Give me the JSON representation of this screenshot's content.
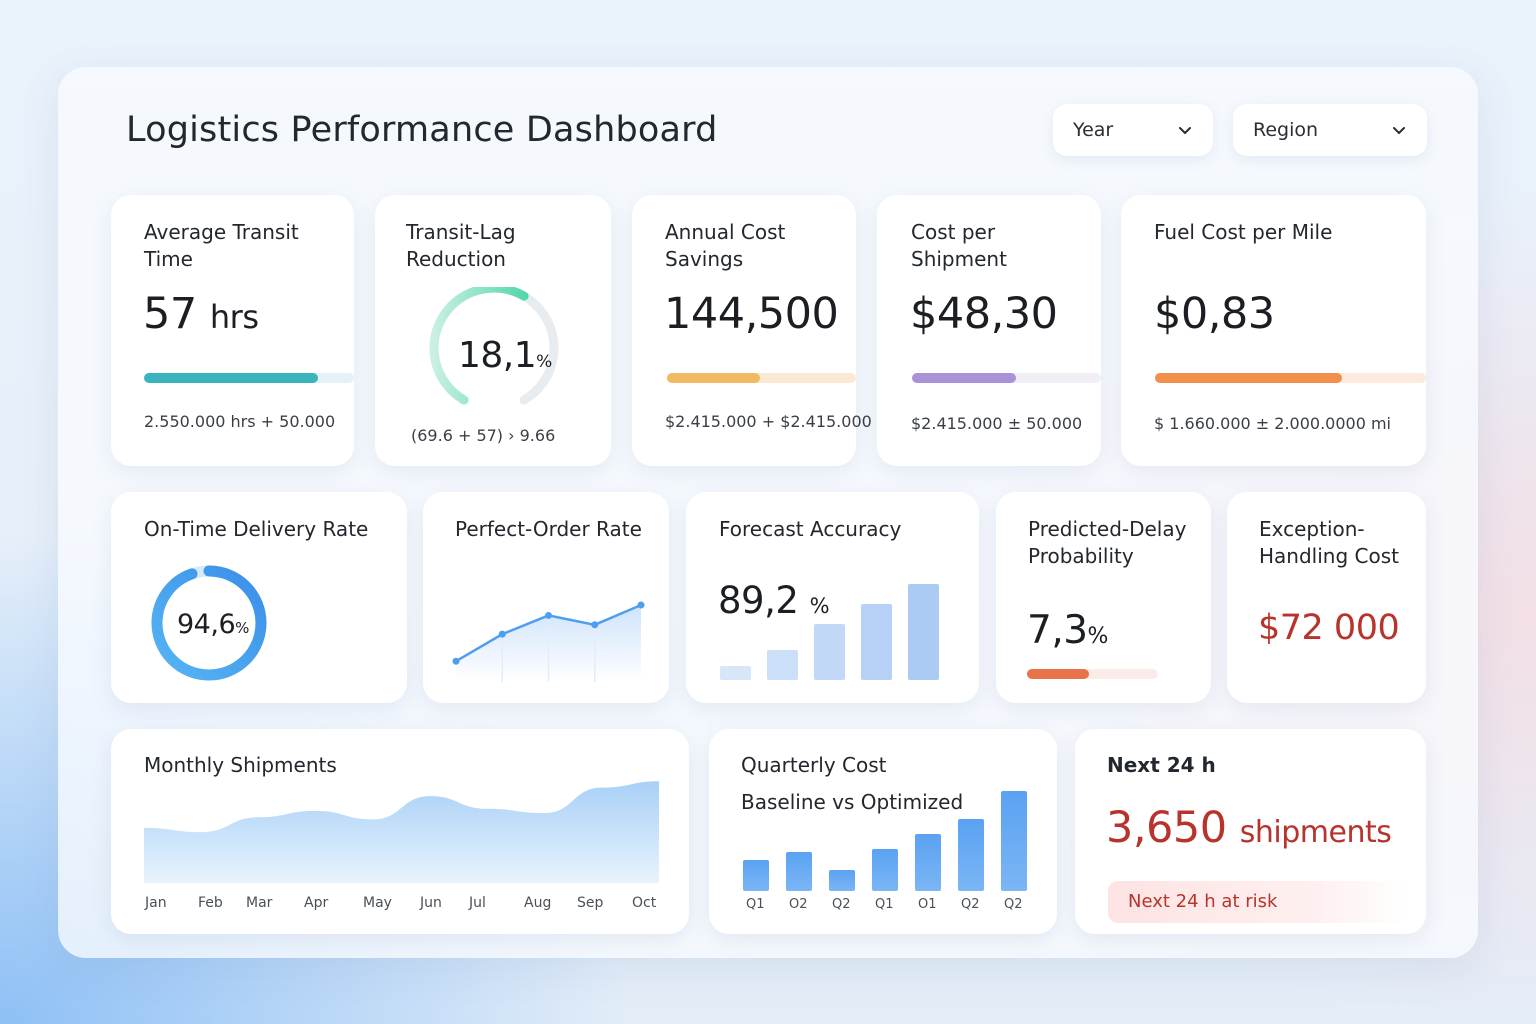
{
  "header": {
    "title": "Logistics Performance Dashboard",
    "filters": [
      {
        "label": "Year"
      },
      {
        "label": "Region"
      }
    ]
  },
  "kpis": {
    "avg_transit": {
      "title": "Average Transit Time",
      "value": "57",
      "unit": "hrs",
      "sub": "2.550.000  hrs  +  50.000",
      "progress": 0.83
    },
    "transit_lag": {
      "title": "Transit-Lag Reduction",
      "value": "18,1",
      "unit": "%",
      "sub": "(69.6 + 57)  › 9.66",
      "progress": 0.6
    },
    "annual_savings": {
      "title": "Annual Cost Savings",
      "value": "144,500",
      "sub": "$2.415.000 + $2.415.000",
      "progress": 0.49
    },
    "cost_per_shipment": {
      "title": "Cost per Shipment",
      "value": "$48,30",
      "sub": "$2.415.000  ±  50.000",
      "progress": 0.55
    },
    "fuel_cost": {
      "title": "Fuel Cost per Mile",
      "value": "$0,83",
      "sub": "$ 1.660.000  ±  2.000.0000  mi",
      "progress": 0.69
    }
  },
  "row2": {
    "on_time": {
      "title": "On-Time Delivery Rate",
      "value": "94,6",
      "unit": "%",
      "progress": 0.946
    },
    "perfect_order": {
      "title": "Perfect-Order Rate"
    },
    "forecast": {
      "title": "Forecast Accuracy",
      "value": "89,2",
      "unit": "%"
    },
    "predicted_delay": {
      "title": "Predicted-Delay Probability",
      "value": "7,3",
      "unit": "%",
      "progress": 0.47
    },
    "exception_cost": {
      "title": "Exception-Handling Cost",
      "value": "$72 000"
    }
  },
  "row3": {
    "monthly": {
      "title": "Monthly Shipments"
    },
    "quarterly": {
      "title": "Quarterly Cost",
      "subtitle": "Baseline vs Optimized"
    },
    "next24": {
      "title": "Next 24 h",
      "value": "3,650",
      "unit": "shipments",
      "alert": "Next 24 h  at risk"
    }
  },
  "colors": {
    "teal": "#3bb3bd",
    "green": "#34c79a",
    "amber": "#f0b962",
    "purple": "#a993d6",
    "orange": "#f0904a",
    "blue": "#4e9ef0",
    "red": "#b8332c",
    "delay": "#e8734a"
  },
  "chart_data": [
    {
      "type": "line",
      "title": "Perfect-Order Rate",
      "x": [
        1,
        2,
        3,
        4,
        5
      ],
      "values": [
        20,
        46,
        64,
        55,
        74
      ],
      "ylim": [
        0,
        100
      ]
    },
    {
      "type": "bar",
      "title": "Forecast Accuracy",
      "categories": [
        "1",
        "2",
        "3",
        "4",
        "5"
      ],
      "values": [
        14,
        30,
        56,
        76,
        96
      ],
      "ylim": [
        0,
        100
      ]
    },
    {
      "type": "area",
      "title": "Monthly Shipments",
      "categories": [
        "Jan",
        "Feb",
        "Mar",
        "Apr",
        "May",
        "Jun",
        "Jul",
        "Aug",
        "Sep",
        "Oct"
      ],
      "values": [
        52,
        48,
        62,
        68,
        60,
        82,
        70,
        66,
        90,
        96
      ],
      "ylim": [
        0,
        100
      ]
    },
    {
      "type": "bar",
      "title": "Quarterly Cost",
      "subtitle": "Baseline vs Optimized",
      "categories": [
        "Q1",
        "O2",
        "Q2",
        "Q1",
        "O1",
        "Q2",
        "Q2"
      ],
      "values": [
        31,
        39,
        21,
        42,
        57,
        72,
        100
      ],
      "ylim": [
        0,
        100
      ]
    }
  ]
}
